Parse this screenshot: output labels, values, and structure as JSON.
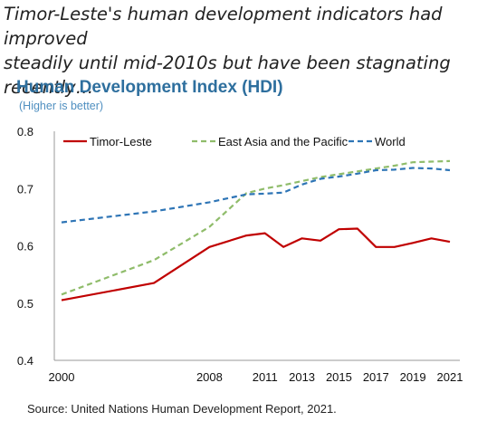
{
  "headline": {
    "line1": "Timor-Leste's human development indicators had improved",
    "line2": "steadily until mid-2010s but have been stagnating recently…"
  },
  "source": "Source: United Nations Human Development Report, 2021.",
  "chart_data": {
    "type": "line",
    "title": "Human Development Index (HDI)",
    "subtitle": "(Higher is better)",
    "xlabel": "",
    "ylabel": "",
    "ylim": [
      0.4,
      0.8
    ],
    "yticks": [
      "0.4",
      "0.5",
      "0.6",
      "0.7",
      "0.8"
    ],
    "xtick_labels": [
      "2000",
      "2008",
      "2011",
      "2013",
      "2015",
      "2017",
      "2019",
      "2021"
    ],
    "x": [
      2000,
      2005,
      2008,
      2010,
      2011,
      2012,
      2013,
      2014,
      2015,
      2016,
      2017,
      2018,
      2019,
      2020,
      2021
    ],
    "grid": false,
    "legend_position": "top",
    "series": [
      {
        "name": "Timor-Leste",
        "style": "solid",
        "color": "#c00000",
        "values": [
          0.505,
          0.535,
          0.598,
          0.618,
          0.622,
          0.598,
          0.613,
          0.609,
          0.629,
          0.63,
          0.598,
          0.598,
          0.605,
          0.613,
          0.607
        ]
      },
      {
        "name": "East Asia and the Pacific",
        "style": "dashed",
        "color": "#8fbc6a",
        "values": [
          0.515,
          0.575,
          0.633,
          0.692,
          0.7,
          0.706,
          0.713,
          0.72,
          0.725,
          0.73,
          0.735,
          0.74,
          0.746,
          0.747,
          0.748
        ]
      },
      {
        "name": "World",
        "style": "dashed",
        "color": "#2e75b6",
        "values": [
          0.641,
          0.66,
          0.676,
          0.69,
          0.691,
          0.693,
          0.707,
          0.717,
          0.721,
          0.726,
          0.732,
          0.733,
          0.736,
          0.735,
          0.732
        ]
      }
    ]
  }
}
